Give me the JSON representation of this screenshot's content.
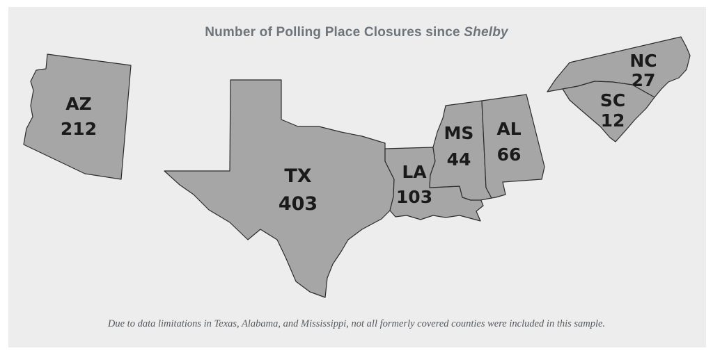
{
  "title": {
    "main": "Number of Polling Place Closures since ",
    "emphasis": "Shelby"
  },
  "states": [
    {
      "id": "az",
      "abbr": "AZ",
      "value": "212"
    },
    {
      "id": "tx",
      "abbr": "TX",
      "value": "403"
    },
    {
      "id": "la",
      "abbr": "LA",
      "value": "103"
    },
    {
      "id": "ms",
      "abbr": "MS",
      "value": "44"
    },
    {
      "id": "al",
      "abbr": "AL",
      "value": "66"
    },
    {
      "id": "nc",
      "abbr": "NC",
      "value": "27"
    },
    {
      "id": "sc",
      "abbr": "SC",
      "value": "12"
    }
  ],
  "footnote": "Due to data limitations in Texas, Alabama, and Mississippi, not all formerly covered counties were included in this sample.",
  "colors": {
    "state_fill": "#a6a6a7",
    "background": "#ededee",
    "title": "#6d747a"
  }
}
